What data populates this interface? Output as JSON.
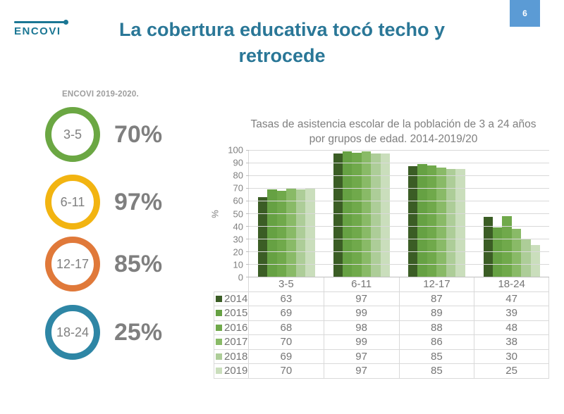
{
  "page": {
    "badge": "6"
  },
  "logo": {
    "text": "ENCOVI"
  },
  "title": {
    "text": "La cobertura educativa tocó techo y retrocede"
  },
  "left_panel": {
    "heading": "ENCOVI 2019-2020.",
    "items": [
      {
        "age": "3-5",
        "value": "70%",
        "ring_color": "#6ba743"
      },
      {
        "age": "6-11",
        "value": "97%",
        "ring_color": "#f2b411"
      },
      {
        "age": "12-17",
        "value": "85%",
        "ring_color": "#e0793a"
      },
      {
        "age": "18-24",
        "value": "25%",
        "ring_color": "#2e86a5"
      }
    ]
  },
  "chart_data": {
    "type": "bar",
    "title": "Tasas de asistencia escolar de la población de 3 a 24 años por grupos de edad. 2014-2019/20",
    "xlabel": "",
    "ylabel": "%",
    "ylim": [
      0,
      100
    ],
    "ytick_step": 10,
    "grid": true,
    "legend_position": "table-left",
    "categories": [
      "3-5",
      "6-11",
      "12-17",
      "18-24"
    ],
    "series": [
      {
        "name": "2014",
        "color": "#3b5d25",
        "values": [
          63,
          97,
          87,
          47
        ]
      },
      {
        "name": "2015",
        "color": "#66a143",
        "values": [
          69,
          99,
          89,
          39
        ]
      },
      {
        "name": "2016",
        "color": "#70a94b",
        "values": [
          68,
          98,
          88,
          48
        ]
      },
      {
        "name": "2017",
        "color": "#89ba67",
        "values": [
          70,
          99,
          86,
          38
        ]
      },
      {
        "name": "2018",
        "color": "#adcd98",
        "values": [
          69,
          97,
          85,
          30
        ]
      },
      {
        "name": "2019",
        "color": "#cadebc",
        "values": [
          70,
          97,
          85,
          25
        ]
      }
    ]
  },
  "colors": {
    "title_teal": "#2a7797",
    "logo_teal": "#1b7794",
    "badge_blue": "#5b9bd5",
    "text_gray": "#7f7f7f",
    "grid_gray": "#d9d9d9"
  }
}
